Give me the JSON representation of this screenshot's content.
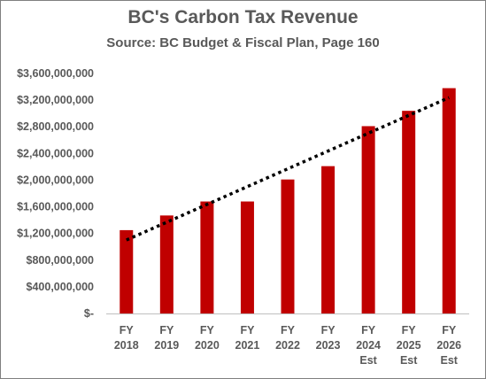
{
  "chart_data": {
    "type": "bar",
    "title": "BC's Carbon Tax Revenue",
    "subtitle": "Source: BC Budget & Fiscal Plan, Page 160",
    "categories": [
      [
        "FY",
        "2018"
      ],
      [
        "FY",
        "2019"
      ],
      [
        "FY",
        "2020"
      ],
      [
        "FY",
        "2021"
      ],
      [
        "FY",
        "2022"
      ],
      [
        "FY",
        "2023"
      ],
      [
        "FY",
        "2024",
        "Est"
      ],
      [
        "FY",
        "2025",
        "Est"
      ],
      [
        "FY",
        "2026",
        "Est"
      ]
    ],
    "values": [
      1250000000,
      1470000000,
      1680000000,
      1680000000,
      2010000000,
      2210000000,
      2810000000,
      3040000000,
      3380000000
    ],
    "ylim": [
      0,
      3600000000
    ],
    "yticks": [
      0,
      400000000,
      800000000,
      1200000000,
      1600000000,
      2000000000,
      2400000000,
      2800000000,
      3200000000,
      3600000000
    ],
    "ytick_labels": [
      "$-",
      "$400,000,000",
      "$800,000,000",
      "$1,200,000,000",
      "$1,600,000,000",
      "$2,000,000,000",
      "$2,400,000,000",
      "$2,800,000,000",
      "$3,200,000,000",
      "$3,600,000,000"
    ],
    "trendline": {
      "type": "linear",
      "style": "dotted",
      "color": "#000000"
    },
    "bar_color": "#c00000",
    "grid": false,
    "legend": "none"
  }
}
